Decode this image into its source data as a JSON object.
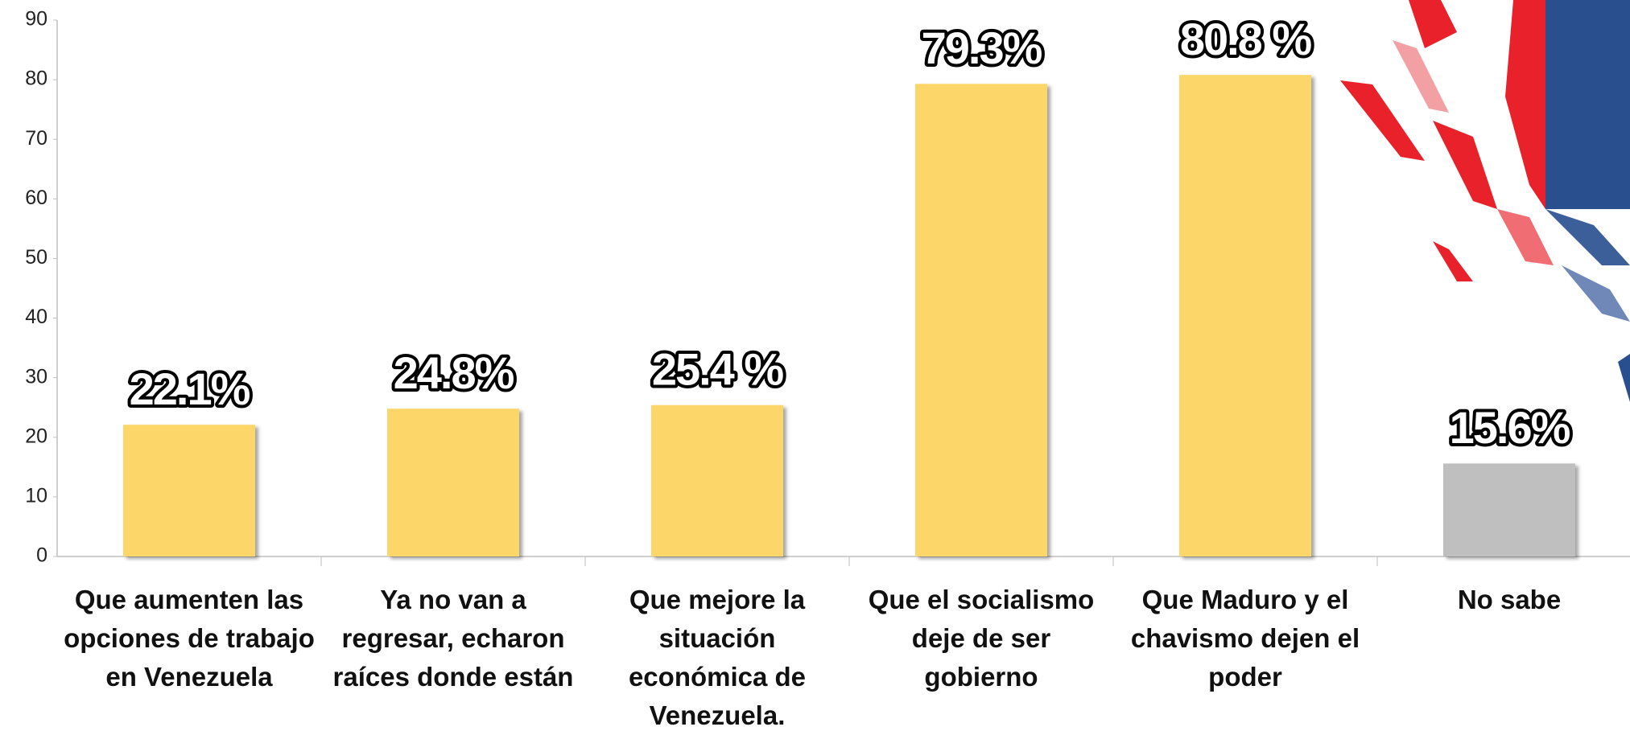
{
  "chart_data": {
    "type": "bar",
    "categories": [
      "Que aumenten las opciones de trabajo en Venezuela",
      "Ya no van a regresar, echaron raíces donde están",
      "Que mejore la situación económica de Venezuela.",
      "Que el socialismo deje de ser gobierno",
      "Que Maduro y el chavismo dejen el poder",
      "No sabe"
    ],
    "values": [
      22.1,
      24.8,
      25.4,
      79.3,
      80.8,
      15.6
    ],
    "value_labels": [
      "22.1%",
      "24.8%",
      "25.4 %",
      "79.3%",
      "80.8 %",
      "15.6%"
    ],
    "colors": [
      "#FDD66A",
      "#FDD66A",
      "#FDD66A",
      "#FDD66A",
      "#FDD66A",
      "#BFBFBF"
    ],
    "ylim": [
      0,
      90
    ],
    "yticks": [
      0,
      10,
      20,
      30,
      40,
      50,
      60,
      70,
      80,
      90
    ],
    "grid": false
  }
}
